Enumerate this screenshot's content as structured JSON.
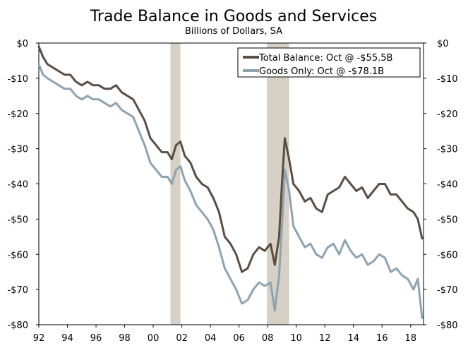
{
  "chart_data": {
    "type": "line",
    "title": "Trade Balance in Goods and Services",
    "subtitle": "Billions of Dollars, SA",
    "xlabel": "",
    "ylabel": "",
    "x_range": [
      1992,
      2018.9
    ],
    "ylim": [
      -80,
      0
    ],
    "y_ticks": [
      0,
      -10,
      -20,
      -30,
      -40,
      -50,
      -60,
      -70,
      -80
    ],
    "y_tick_labels": [
      "$0",
      "-$10",
      "-$20",
      "-$30",
      "-$40",
      "-$50",
      "-$60",
      "-$70",
      "-$80"
    ],
    "x_ticks": [
      1992,
      1994,
      1996,
      1998,
      2000,
      2002,
      2004,
      2006,
      2008,
      2010,
      2012,
      2014,
      2016,
      2018
    ],
    "x_tick_labels": [
      "92",
      "94",
      "96",
      "98",
      "00",
      "02",
      "04",
      "06",
      "08",
      "10",
      "12",
      "14",
      "16",
      "18"
    ],
    "recessions": [
      [
        2001.2,
        2001.9
      ],
      [
        2007.95,
        2009.5
      ]
    ],
    "legend_position": "top-right",
    "series": [
      {
        "name": "Total Balance: Oct @ -$55.5B",
        "color": "#5a4d42",
        "x": [
          1992.0,
          1992.3,
          1992.6,
          1993.0,
          1993.4,
          1993.8,
          1994.2,
          1994.6,
          1995.0,
          1995.4,
          1995.8,
          1996.2,
          1996.6,
          1997.0,
          1997.4,
          1997.8,
          1998.2,
          1998.6,
          1999.0,
          1999.4,
          1999.8,
          2000.2,
          2000.6,
          2001.0,
          2001.3,
          2001.6,
          2001.9,
          2002.2,
          2002.6,
          2003.0,
          2003.4,
          2003.8,
          2004.2,
          2004.6,
          2005.0,
          2005.4,
          2005.8,
          2006.2,
          2006.6,
          2007.0,
          2007.4,
          2007.8,
          2008.2,
          2008.5,
          2008.8,
          2009.0,
          2009.2,
          2009.5,
          2009.8,
          2010.2,
          2010.6,
          2011.0,
          2011.4,
          2011.8,
          2012.2,
          2012.6,
          2013.0,
          2013.4,
          2013.8,
          2014.2,
          2014.6,
          2015.0,
          2015.4,
          2015.8,
          2016.2,
          2016.6,
          2017.0,
          2017.4,
          2017.8,
          2018.2,
          2018.5,
          2018.8
        ],
        "values": [
          -1,
          -4,
          -6,
          -7,
          -8,
          -9,
          -9,
          -11,
          -12,
          -11,
          -12,
          -12,
          -13,
          -13,
          -12,
          -14,
          -15,
          -16,
          -19,
          -22,
          -27,
          -29,
          -31,
          -31,
          -33,
          -29,
          -28,
          -32,
          -34,
          -38,
          -40,
          -41,
          -44,
          -48,
          -55,
          -57,
          -60,
          -65,
          -64,
          -60,
          -58,
          -59,
          -57,
          -63,
          -55,
          -40,
          -27,
          -33,
          -40,
          -42,
          -45,
          -44,
          -47,
          -48,
          -43,
          -42,
          -41,
          -38,
          -40,
          -42,
          -41,
          -44,
          -42,
          -40,
          -40,
          -43,
          -43,
          -45,
          -47,
          -48,
          -50,
          -55.5
        ]
      },
      {
        "name": "Goods Only: Oct @ -$78.1B",
        "color": "#8ea3b2",
        "x": [
          1992.0,
          1992.3,
          1992.6,
          1993.0,
          1993.4,
          1993.8,
          1994.2,
          1994.6,
          1995.0,
          1995.4,
          1995.8,
          1996.2,
          1996.6,
          1997.0,
          1997.4,
          1997.8,
          1998.2,
          1998.6,
          1999.0,
          1999.4,
          1999.8,
          2000.2,
          2000.6,
          2001.0,
          2001.3,
          2001.6,
          2001.9,
          2002.2,
          2002.6,
          2003.0,
          2003.4,
          2003.8,
          2004.2,
          2004.6,
          2005.0,
          2005.4,
          2005.8,
          2006.2,
          2006.6,
          2007.0,
          2007.4,
          2007.8,
          2008.2,
          2008.5,
          2008.8,
          2009.0,
          2009.2,
          2009.5,
          2009.8,
          2010.2,
          2010.6,
          2011.0,
          2011.4,
          2011.8,
          2012.2,
          2012.6,
          2013.0,
          2013.4,
          2013.8,
          2014.2,
          2014.6,
          2015.0,
          2015.4,
          2015.8,
          2016.2,
          2016.6,
          2017.0,
          2017.4,
          2017.8,
          2018.2,
          2018.5,
          2018.8
        ],
        "values": [
          -6,
          -9,
          -10,
          -11,
          -12,
          -13,
          -13,
          -15,
          -16,
          -15,
          -16,
          -16,
          -17,
          -18,
          -17,
          -19,
          -20,
          -21,
          -25,
          -29,
          -34,
          -36,
          -38,
          -38,
          -40,
          -36,
          -35,
          -39,
          -42,
          -46,
          -48,
          -50,
          -53,
          -58,
          -64,
          -67,
          -70,
          -74,
          -73,
          -70,
          -68,
          -69,
          -68,
          -76,
          -66,
          -52,
          -36,
          -42,
          -52,
          -55,
          -58,
          -57,
          -60,
          -61,
          -58,
          -57,
          -60,
          -56,
          -59,
          -61,
          -60,
          -63,
          -62,
          -60,
          -61,
          -65,
          -64,
          -66,
          -67,
          -70,
          -67,
          -78.1
        ]
      }
    ]
  }
}
